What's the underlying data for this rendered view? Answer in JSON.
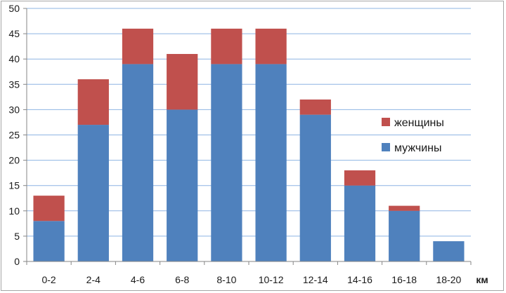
{
  "chart_data": {
    "type": "bar",
    "stacked": true,
    "categories": [
      "0-2",
      "2-4",
      "4-6",
      "6-8",
      "8-10",
      "10-12",
      "12-14",
      "14-16",
      "16-18",
      "18-20"
    ],
    "series": [
      {
        "name": "мужчины",
        "values": [
          8,
          27,
          39,
          30,
          39,
          39,
          29,
          15,
          10,
          4
        ],
        "color": "#4f81bd"
      },
      {
        "name": "женщины",
        "values": [
          5,
          9,
          7,
          11,
          7,
          7,
          3,
          3,
          1,
          0
        ],
        "color": "#c0504d"
      }
    ],
    "xlabel": "км",
    "ylabel": "",
    "ylim": [
      0,
      50
    ],
    "yticks": [
      0,
      5,
      10,
      15,
      20,
      25,
      30,
      35,
      40,
      45,
      50
    ],
    "grid": true,
    "legend": {
      "position": "right",
      "order": [
        "женщины",
        "мужчины"
      ]
    }
  }
}
